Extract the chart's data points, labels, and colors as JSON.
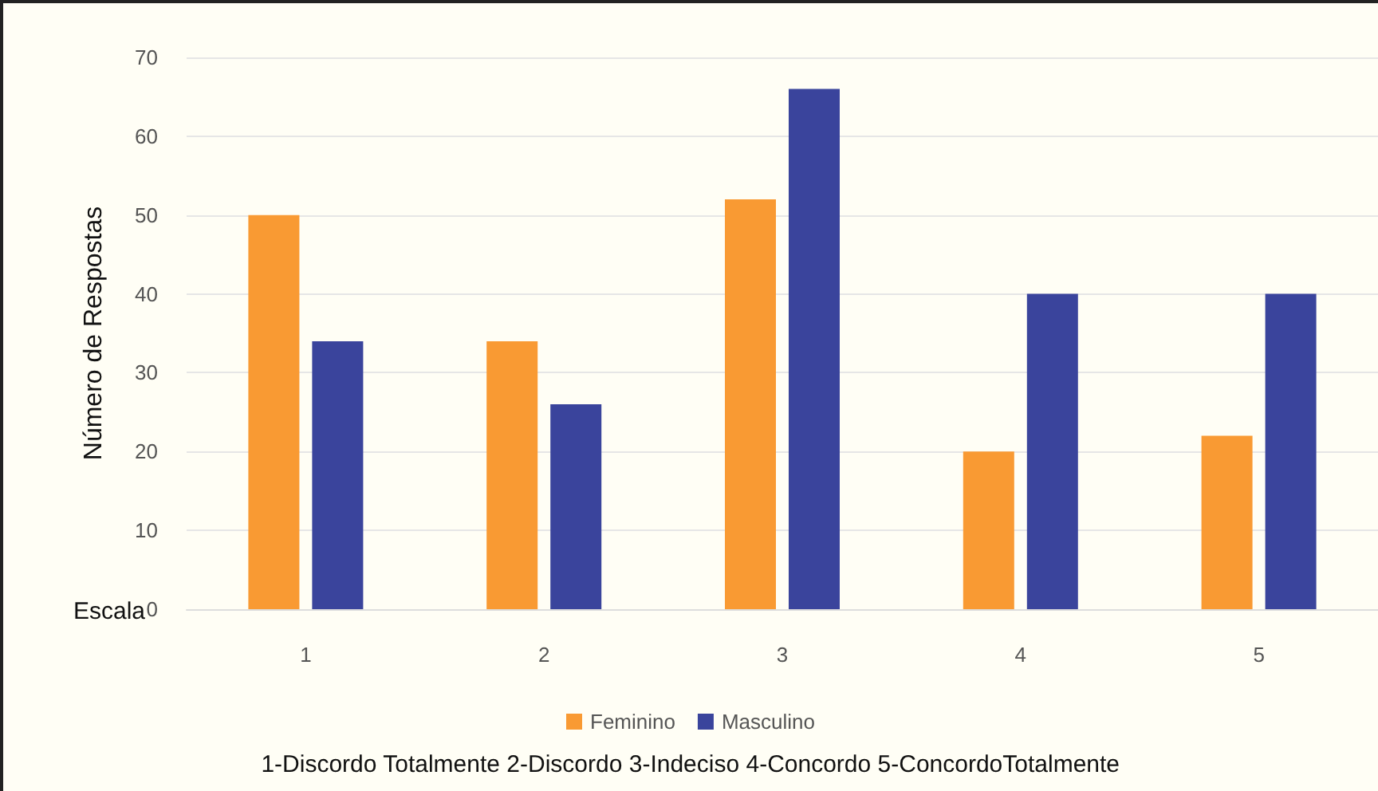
{
  "chart_data": {
    "type": "bar",
    "categories": [
      "1",
      "2",
      "3",
      "4",
      "5"
    ],
    "series": [
      {
        "name": "Feminino",
        "color": "#f99a33",
        "values": [
          50,
          34,
          52,
          20,
          22
        ]
      },
      {
        "name": "Masculino",
        "color": "#3a449c",
        "values": [
          34,
          26,
          66,
          40,
          40
        ]
      }
    ],
    "xlabel": "Escala",
    "ylabel": "Número de Respostas",
    "ylim": [
      0,
      70
    ],
    "yticks": [
      0,
      10,
      20,
      30,
      40,
      50,
      60,
      70
    ],
    "grid": "y",
    "legend": "bottom",
    "annotations": [
      "1-Discordo Totalmente 2-Discordo 3-Indeciso 4-Concordo 5-ConcordoTotalmente"
    ]
  }
}
